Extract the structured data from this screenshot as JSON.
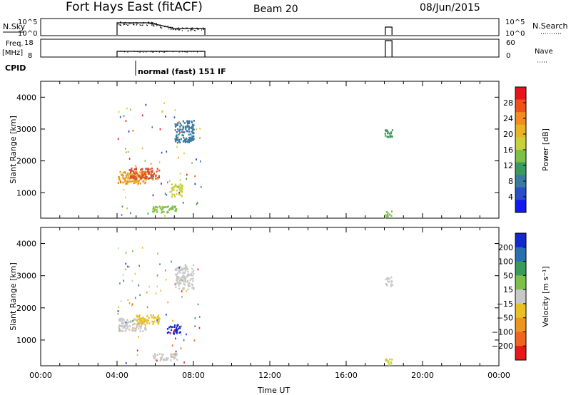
{
  "header": {
    "station": "Fort Hays East (fitACF)",
    "beam": "Beam 20",
    "date": "08/Jun/2015"
  },
  "param_panels": {
    "nsky_label": "N.Sky",
    "nsearch_label": "N.Search",
    "nsky_ticks": [
      "10^5",
      "10^0"
    ],
    "nsearch_ticks": [
      "10^5",
      "10^0"
    ],
    "freq_label": "Freq.",
    "freq_unit": "[MHz]",
    "freq_ticks": [
      "18",
      "8"
    ],
    "nave_label": "Nave",
    "nave_ticks": [
      "60",
      "0"
    ],
    "cpid_label": "CPID",
    "cpid_text": "normal (fast) 151 IF"
  },
  "chart_data": [
    {
      "type": "heatmap",
      "name": "power",
      "ylabel": "Slant Range [km]",
      "y_ticks": [
        1000,
        2000,
        3000,
        4000
      ],
      "ylim": [
        200,
        4500
      ],
      "x_ticks": [
        "00:00",
        "04:00",
        "08:00",
        "12:00",
        "16:00",
        "20:00",
        "00:00"
      ],
      "xlim_hours": [
        0,
        24
      ],
      "colorbar": {
        "label": "Power [dB]",
        "ticks": [
          "28",
          "24",
          "20",
          "16",
          "12",
          "8",
          "4"
        ],
        "colors": [
          "#e8141c",
          "#f0501a",
          "#f28c1e",
          "#e8b422",
          "#c8d03c",
          "#7cc04a",
          "#3a9a5c",
          "#3a7aa0",
          "#2a4ec8",
          "#1418f0"
        ]
      },
      "regions": [
        {
          "t0": 4.0,
          "t1": 5.5,
          "r0": 1300,
          "r1": 1700,
          "color": "#e8a022"
        },
        {
          "t0": 4.6,
          "t1": 6.2,
          "r0": 1450,
          "r1": 1800,
          "color": "#d8502a"
        },
        {
          "t0": 5.8,
          "t1": 7.1,
          "r0": 400,
          "r1": 600,
          "color": "#7cc04a"
        },
        {
          "t0": 6.8,
          "t1": 7.4,
          "r0": 900,
          "r1": 1300,
          "color": "#c8d03c"
        },
        {
          "t0": 7.0,
          "t1": 8.0,
          "r0": 2600,
          "r1": 3300,
          "color": "#3a7aa0"
        },
        {
          "t0": 18.0,
          "t1": 18.4,
          "r0": 2700,
          "r1": 3000,
          "color": "#3a9a5c"
        },
        {
          "t0": 18.0,
          "t1": 18.4,
          "r0": 250,
          "r1": 450,
          "color": "#7cc04a"
        }
      ]
    },
    {
      "type": "heatmap",
      "name": "velocity",
      "ylabel": "Slant Range [km]",
      "y_ticks": [
        1000,
        2000,
        3000,
        4000
      ],
      "ylim": [
        200,
        4500
      ],
      "x_ticks": [
        "00:00",
        "04:00",
        "08:00",
        "12:00",
        "16:00",
        "20:00",
        "00:00"
      ],
      "xlabel": "Time UT",
      "xlim_hours": [
        0,
        24
      ],
      "colorbar": {
        "label": "Velocity [m s⁻¹]",
        "ticks": [
          "200",
          "100",
          "50",
          "15",
          "−15",
          "−50",
          "−100",
          "−200"
        ],
        "colors": [
          "#1428d0",
          "#2a70b0",
          "#3a9a5c",
          "#7cc04a",
          "#c8c8c8",
          "#e8c024",
          "#f09420",
          "#f06420",
          "#e81818"
        ]
      },
      "regions": [
        {
          "t0": 4.0,
          "t1": 5.5,
          "r0": 1300,
          "r1": 1700,
          "color": "#c8c8c8"
        },
        {
          "t0": 5.0,
          "t1": 6.2,
          "r0": 1500,
          "r1": 1800,
          "color": "#e8c024"
        },
        {
          "t0": 6.6,
          "t1": 7.3,
          "r0": 1200,
          "r1": 1500,
          "color": "#1428d0"
        },
        {
          "t0": 5.8,
          "t1": 7.1,
          "r0": 400,
          "r1": 600,
          "color": "#c8c8c8"
        },
        {
          "t0": 7.0,
          "t1": 8.0,
          "r0": 2600,
          "r1": 3300,
          "color": "#c8c8c8"
        },
        {
          "t0": 18.0,
          "t1": 18.4,
          "r0": 2700,
          "r1": 3000,
          "color": "#c8c8c8"
        },
        {
          "t0": 18.0,
          "t1": 18.4,
          "r0": 250,
          "r1": 450,
          "color": "#c8d03c"
        }
      ]
    }
  ]
}
